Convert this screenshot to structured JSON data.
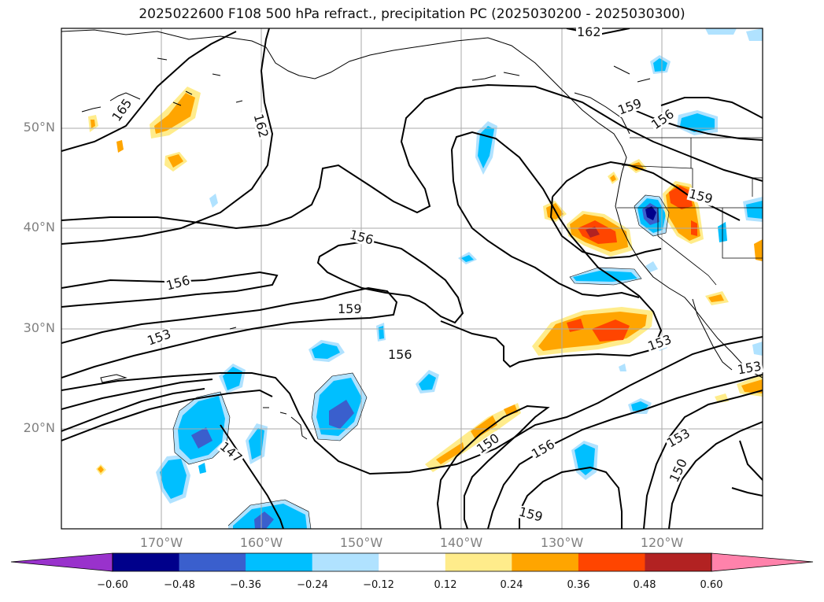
{
  "title": "2025022600 F108 500 hPa refract., precipitation PC (2025030200 - 2025030300)",
  "map": {
    "lat_labels": [
      "50°N",
      "40°N",
      "30°N",
      "20°N"
    ],
    "lon_labels": [
      "170°W",
      "160°W",
      "150°W",
      "140°W",
      "130°W",
      "120°W"
    ],
    "contour_labels": [
      "165",
      "162",
      "162",
      "159",
      "156",
      "156",
      "156",
      "159",
      "156",
      "153",
      "159",
      "153",
      "153",
      "150",
      "147",
      "156",
      "153",
      "150",
      "159"
    ]
  },
  "colorbar": {
    "ticks": [
      "−0.60",
      "−0.48",
      "−0.36",
      "−0.24",
      "−0.12",
      "0.12",
      "0.24",
      "0.36",
      "0.48",
      "0.60"
    ],
    "colors": {
      "purple": "#9932CC",
      "navy": "#00008B",
      "royal": "#3A5FCD",
      "deepsky": "#00BFFF",
      "lightblue": "#B0E2FF",
      "white": "#FFFFFF",
      "lightyellow": "#FFEC8B",
      "orange": "#FFA500",
      "orangered": "#FF4500",
      "firebrick": "#B22222",
      "pink": "#FF82AB"
    }
  }
}
